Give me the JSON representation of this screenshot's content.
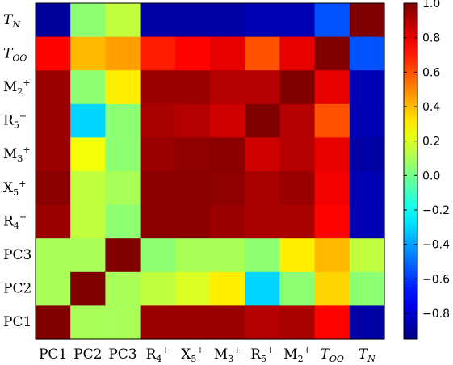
{
  "chart_data": {
    "type": "heatmap",
    "colormap": "jet",
    "vmin": -0.95,
    "vmax": 1.0,
    "row_labels": [
      {
        "base": "T",
        "sub": "N",
        "sup": "",
        "italic": true
      },
      {
        "base": "T",
        "sub": "OO",
        "sup": "",
        "italic": true
      },
      {
        "base": "M",
        "sub": "2",
        "sup": "+",
        "italic": false
      },
      {
        "base": "R",
        "sub": "5",
        "sup": "+",
        "italic": false
      },
      {
        "base": "M",
        "sub": "3",
        "sup": "+",
        "italic": false
      },
      {
        "base": "X",
        "sub": "5",
        "sup": "+",
        "italic": false
      },
      {
        "base": "R",
        "sub": "4",
        "sup": "+",
        "italic": false
      },
      {
        "base": "PC3",
        "sub": "",
        "sup": "",
        "italic": false
      },
      {
        "base": "PC2",
        "sub": "",
        "sup": "",
        "italic": false
      },
      {
        "base": "PC1",
        "sub": "",
        "sup": "",
        "italic": false
      }
    ],
    "col_labels": [
      {
        "base": "PC1",
        "sub": "",
        "sup": "",
        "italic": false
      },
      {
        "base": "PC2",
        "sub": "",
        "sup": "",
        "italic": false
      },
      {
        "base": "PC3",
        "sub": "",
        "sup": "",
        "italic": false
      },
      {
        "base": "R",
        "sub": "4",
        "sup": "+",
        "italic": false
      },
      {
        "base": "X",
        "sub": "5",
        "sup": "+",
        "italic": false
      },
      {
        "base": "M",
        "sub": "3",
        "sup": "+",
        "italic": false
      },
      {
        "base": "R",
        "sub": "5",
        "sup": "+",
        "italic": false
      },
      {
        "base": "M",
        "sub": "2",
        "sup": "+",
        "italic": false
      },
      {
        "base": "T",
        "sub": "OO",
        "sup": "",
        "italic": true
      },
      {
        "base": "T",
        "sub": "N",
        "sup": "",
        "italic": true
      }
    ],
    "values": [
      [
        -0.9,
        0.05,
        0.15,
        -0.88,
        -0.88,
        -0.88,
        -0.85,
        -0.85,
        -0.55,
        1.0
      ],
      [
        0.75,
        0.4,
        0.45,
        0.7,
        0.75,
        0.8,
        0.6,
        0.8,
        1.0,
        -0.55
      ],
      [
        0.95,
        0.05,
        0.3,
        0.95,
        0.95,
        0.9,
        0.9,
        1.0,
        0.8,
        -0.85
      ],
      [
        0.95,
        -0.3,
        0.05,
        0.92,
        0.9,
        0.85,
        1.0,
        0.9,
        0.6,
        -0.85
      ],
      [
        0.95,
        0.25,
        0.05,
        0.95,
        0.97,
        0.98,
        0.85,
        0.9,
        0.8,
        -0.88
      ],
      [
        0.98,
        0.15,
        0.1,
        0.98,
        0.98,
        0.97,
        0.92,
        0.95,
        0.78,
        -0.85
      ],
      [
        0.95,
        0.15,
        0.05,
        0.98,
        0.98,
        0.95,
        0.92,
        0.92,
        0.75,
        -0.85
      ],
      [
        0.1,
        0.1,
        1.0,
        0.05,
        0.1,
        0.1,
        0.05,
        0.3,
        0.4,
        0.15
      ],
      [
        0.1,
        1.0,
        0.1,
        0.15,
        0.2,
        0.3,
        -0.3,
        0.05,
        0.35,
        0.05
      ],
      [
        1.0,
        0.1,
        0.1,
        0.95,
        0.95,
        0.95,
        0.9,
        0.92,
        0.75,
        -0.88
      ]
    ],
    "colorbar_ticks": [
      "1.0",
      "0.8",
      "0.6",
      "0.4",
      "0.2",
      "0.0",
      "−0.2",
      "−0.4",
      "−0.6",
      "−0.8"
    ],
    "colorbar_tick_values": [
      1.0,
      0.8,
      0.6,
      0.4,
      0.2,
      0.0,
      -0.2,
      -0.4,
      -0.6,
      -0.8
    ]
  }
}
